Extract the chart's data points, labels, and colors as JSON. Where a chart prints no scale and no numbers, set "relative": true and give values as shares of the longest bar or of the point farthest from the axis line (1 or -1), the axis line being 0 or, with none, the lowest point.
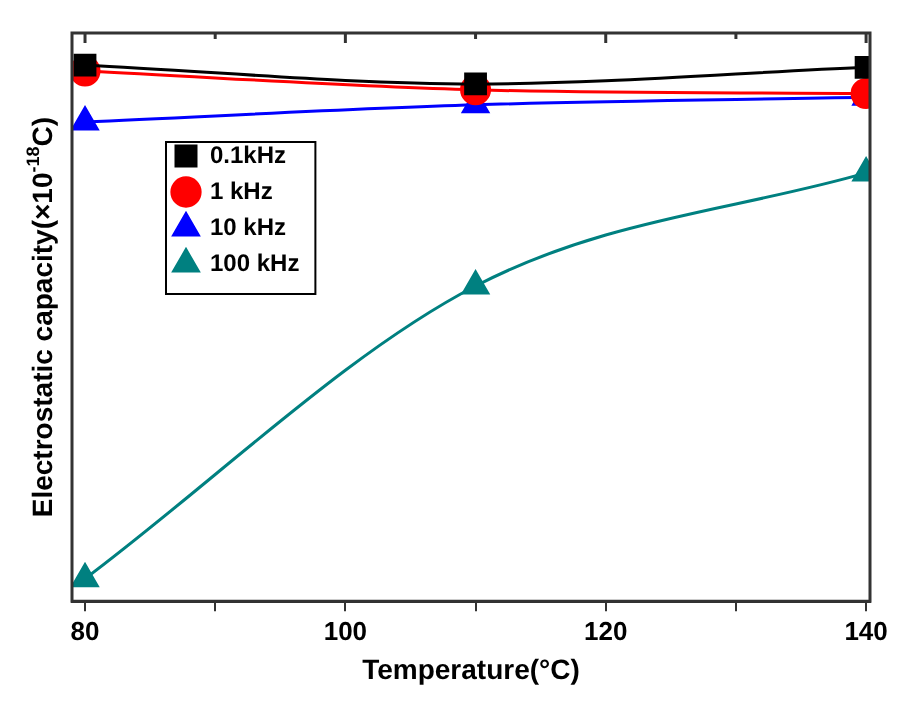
{
  "chart_data": {
    "type": "line",
    "xlabel": "Temperature(°C)",
    "ylabel": "Electrostatic capacity(×10$^{-18}$C)",
    "x": [
      80,
      110,
      140
    ],
    "relative": true,
    "xlim": [
      79,
      140.3
    ],
    "xticks": [
      80,
      {
        "value": 90,
        "label": null
      },
      100,
      {
        "value": 110,
        "label": null
      },
      120,
      {
        "value": 130,
        "label": null
      },
      140
    ],
    "series": [
      {
        "name": "0.1kHz",
        "color": "#000000",
        "marker": "square",
        "values": [
          1,
          0.965,
          0.996
        ]
      },
      {
        "name": "1 kHz",
        "color": "#ff0000",
        "marker": "circle",
        "values": [
          0.989,
          0.954,
          0.947
        ]
      },
      {
        "name": "10 kHz",
        "color": "#0000ff",
        "marker": "triangle",
        "values": [
          0.894,
          0.926,
          0.94
        ]
      },
      {
        "name": "100 kHz",
        "color": "#008080",
        "marker": "triangle",
        "values": [
          0.042,
          0.588,
          0.799
        ]
      }
    ],
    "legend": "top left",
    "grid": false,
    "line_style": "solid"
  }
}
